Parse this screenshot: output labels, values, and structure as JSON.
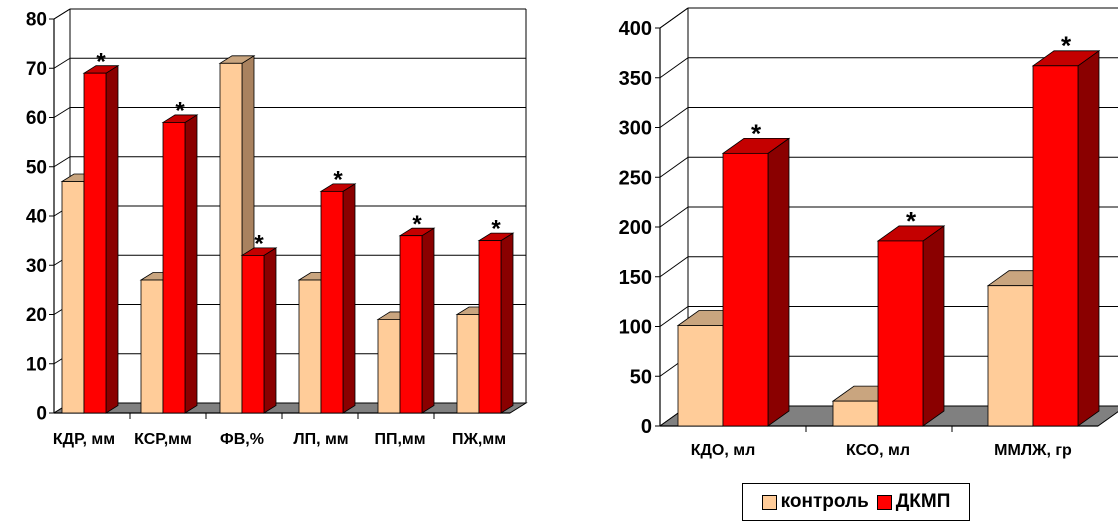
{
  "chart_data": [
    {
      "type": "bar",
      "categories": [
        "КДР, мм",
        "КСР,мм",
        "ФВ,%",
        "ЛП, мм",
        "ПП,мм",
        "ПЖ,мм"
      ],
      "series": [
        {
          "name": "контроль",
          "values": [
            47,
            27,
            71,
            27,
            19,
            20
          ]
        },
        {
          "name": "ДКМП",
          "values": [
            69,
            59,
            32,
            45,
            36,
            35
          ]
        }
      ],
      "annotations": [
        "*",
        "*",
        "*",
        "*",
        "*",
        "*"
      ],
      "yticks": [
        "0",
        "10",
        "20",
        "30",
        "40",
        "50",
        "60",
        "70",
        "80"
      ],
      "ylim": [
        0,
        80
      ],
      "grid": true,
      "style": "3d"
    },
    {
      "type": "bar",
      "categories": [
        "КДО, мл",
        "КСО, мл",
        "ММЛЖ, гр"
      ],
      "series": [
        {
          "name": "контроль",
          "values": [
            101,
            25,
            141
          ]
        },
        {
          "name": "ДКМП",
          "values": [
            274,
            186,
            362
          ]
        }
      ],
      "annotations": [
        "*",
        "*",
        "*"
      ],
      "yticks": [
        "0",
        "50",
        "100",
        "150",
        "200",
        "250",
        "300",
        "350",
        "400"
      ],
      "ylim": [
        0,
        400
      ],
      "grid": true,
      "style": "3d"
    }
  ],
  "legend": {
    "placement": "bottom-right",
    "items": [
      {
        "label": "контроль",
        "color": "#ffcc99"
      },
      {
        "label": "ДКМП",
        "color": "#ff0000"
      }
    ]
  },
  "colors": {
    "control_front": "#ffcc99",
    "control_side": "#a9825f",
    "control_top": "#c9a57f",
    "dkmp_front": "#ff0000",
    "dkmp_side": "#8a0000",
    "dkmp_top": "#c40000",
    "floor": "#808080"
  }
}
